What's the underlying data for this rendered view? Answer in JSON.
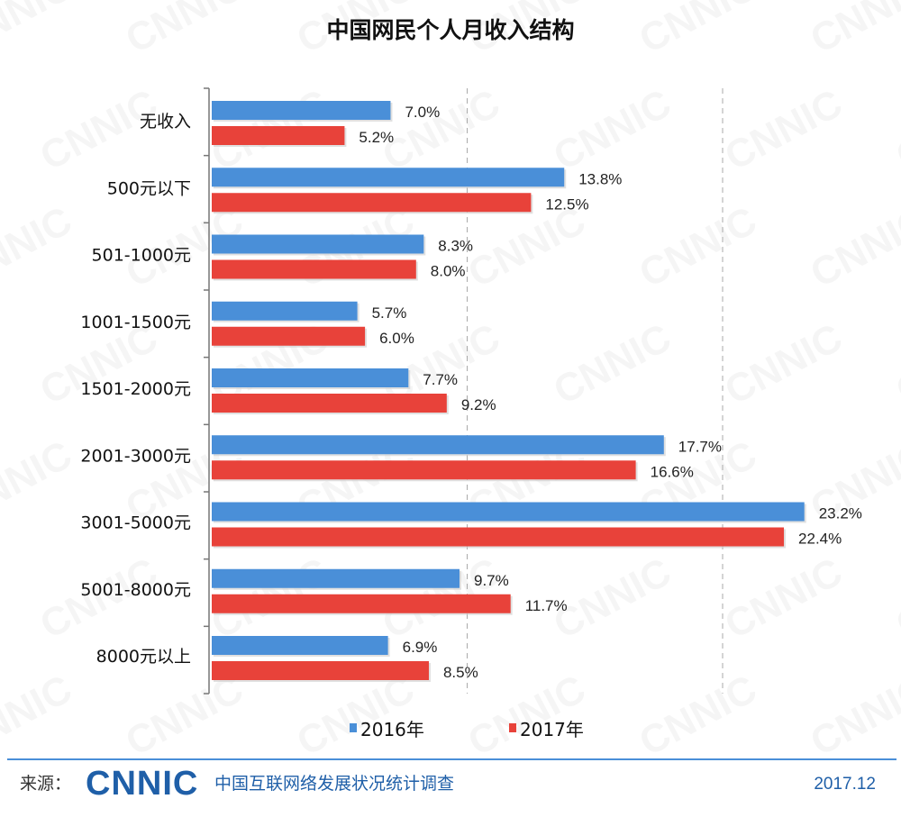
{
  "chart_data": {
    "type": "bar",
    "orientation": "horizontal",
    "title": "中国网民个人月收入结构",
    "categories": [
      "无收入",
      "500元以下",
      "501-1000元",
      "1001-1500元",
      "1501-2000元",
      "2001-3000元",
      "3001-5000元",
      "5001-8000元",
      "8000元以上"
    ],
    "series": [
      {
        "name": "2016年",
        "color": "#4a8fd8",
        "values": [
          7.0,
          13.8,
          8.3,
          5.7,
          7.7,
          17.7,
          23.2,
          9.7,
          6.9
        ]
      },
      {
        "name": "2017年",
        "color": "#e8423a",
        "values": [
          5.2,
          12.5,
          8.0,
          6.0,
          9.2,
          16.6,
          22.4,
          11.7,
          8.5
        ]
      }
    ],
    "value_format": "percent, one decimal",
    "xlim": [
      0,
      25
    ],
    "gridlines": [
      10,
      20
    ],
    "grid": "dashed vertical",
    "legend": "bottom-center"
  },
  "footer": {
    "source_label": "来源：",
    "logo_text": "CNNIC",
    "source_name": "中国互联网络发展状况统计调查",
    "date": "2017.12"
  },
  "watermark": "CNNIC",
  "colors": {
    "accent_line": "#4a8fd8",
    "logo": "#1f5fa8"
  }
}
